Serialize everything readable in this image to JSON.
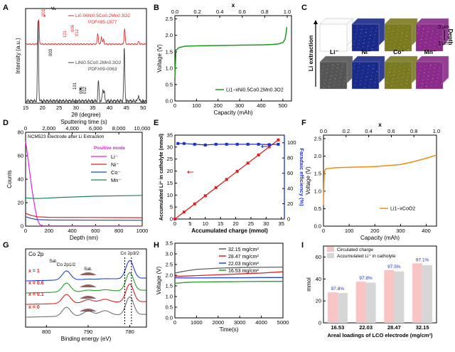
{
  "panel_labels": [
    "A",
    "B",
    "C",
    "D",
    "E",
    "F",
    "G",
    "H",
    "I"
  ],
  "chart_data": [
    {
      "id": "A",
      "type": "line",
      "xlabel": "2θ (degree)",
      "ylabel": "Intensity (a.u.)",
      "xticks": [
        "15",
        "20",
        "25",
        "30",
        "35",
        "40",
        "45",
        "50"
      ],
      "xlim": [
        15,
        51
      ],
      "series": [
        {
          "name": "Li0.06Ni0.5Co0.2Mn0.3O2",
          "ref": "PDF#85-1977",
          "color": "#e03030",
          "peaks": [
            [
              18.9,
              0.72
            ],
            [
              36.5,
              0.32
            ],
            [
              37.6,
              0.22
            ],
            [
              38.2,
              0.14
            ],
            [
              44.5,
              0.45
            ],
            [
              48.7,
              0.08
            ]
          ]
        },
        {
          "name": "LiNi0.5Co0.2Mn0.3O2",
          "ref": "PDF#09-0063",
          "color": "#404040",
          "peaks": [
            [
              18.7,
              0.95
            ],
            [
              36.7,
              0.24
            ],
            [
              38.0,
              0.13
            ],
            [
              38.4,
              0.11
            ],
            [
              44.4,
              0.62
            ],
            [
              48.6,
              0.07
            ]
          ]
        }
      ],
      "annotations": [
        "003",
        "101",
        "006",
        "012",
        "003",
        "101",
        "006",
        "012",
        "♦"
      ]
    },
    {
      "id": "B",
      "type": "line",
      "xlabel": "Capacity (mAh)",
      "ylabel": "Voltage (V)",
      "top_axis_label": "x",
      "xticks": [
        "0",
        "100",
        "200",
        "300",
        "400",
        "500"
      ],
      "xlim": [
        0,
        540
      ],
      "yticks": [
        "0.0",
        "0.5",
        "1.0",
        "1.5",
        "2.0",
        "2.5"
      ],
      "ylim": [
        0,
        2.6
      ],
      "top_ticks": [
        "0.0",
        "0.2",
        "0.4",
        "0.6",
        "0.8",
        "1.0"
      ],
      "series": [
        {
          "name": "Li1−xNi0.5Co0.2Mn0.3O2",
          "color": "#1a9a1a",
          "x": [
            0,
            5,
            20,
            50,
            100,
            200,
            300,
            400,
            450,
            480,
            500,
            510,
            515,
            518
          ],
          "y": [
            0.7,
            1.55,
            1.63,
            1.67,
            1.68,
            1.69,
            1.7,
            1.71,
            1.72,
            1.74,
            1.78,
            1.88,
            2.05,
            2.25
          ]
        }
      ]
    },
    {
      "id": "D",
      "type": "line",
      "title": "NCM523 Electrode after Li Extraction",
      "xlabel": "Depth (nm)",
      "ylabel": "Counts",
      "top_axis_label": "Sputtering time (s)",
      "xticks": [
        "0",
        "200",
        "400",
        "600",
        "800",
        "1000"
      ],
      "xlim": [
        0,
        1000
      ],
      "top_ticks": [
        "0",
        "2,000",
        "4,000",
        "6,000",
        "8,000",
        "10,000"
      ],
      "yticks": [
        "0",
        "20",
        "40",
        "60",
        "80"
      ],
      "ylim": [
        0,
        80
      ],
      "legend_title": "Positive mode",
      "series": [
        {
          "name": "Li⁻",
          "color": "#e020e0",
          "x": [
            0,
            20,
            40,
            60,
            80,
            100,
            120,
            150,
            1000
          ],
          "y": [
            72,
            58,
            42,
            28,
            16,
            6,
            1.5,
            0.3,
            0.2
          ]
        },
        {
          "name": "Ni⁻",
          "color": "#e02020",
          "x": [
            0,
            50,
            100,
            200,
            1000
          ],
          "y": [
            11,
            9,
            8,
            7.5,
            7.2
          ]
        },
        {
          "name": "Co⁻",
          "color": "#2040e0",
          "x": [
            0,
            50,
            100,
            200,
            1000
          ],
          "y": [
            8,
            6.5,
            5.6,
            5.2,
            5.0
          ]
        },
        {
          "name": "Mn⁻",
          "color": "#208060",
          "x": [
            0,
            100,
            300,
            600,
            1000
          ],
          "y": [
            24,
            23.5,
            24.5,
            25.5,
            26.2
          ]
        }
      ]
    },
    {
      "id": "E",
      "type": "line",
      "xlabel": "Accumulated charge (mmol)",
      "ylabel": "Accumulated Li⁺ in catholyte (mmol)",
      "y2label": "Faradaic efficiency (%)",
      "xticks": [
        "0",
        "5",
        "10",
        "15",
        "20",
        "25",
        "30",
        "35"
      ],
      "xlim": [
        0,
        36
      ],
      "yticks": [
        "0",
        "5",
        "10",
        "15",
        "20",
        "25",
        "30",
        "35"
      ],
      "ylim": [
        0,
        35
      ],
      "y2ticks": [
        "0",
        "20",
        "40",
        "60",
        "80",
        "100"
      ],
      "y2lim": [
        0,
        110
      ],
      "series": [
        {
          "name": "Accumulated Li⁺",
          "color": "#e02020",
          "x": [
            0,
            3,
            6.5,
            10,
            13.5,
            17,
            20.5,
            24,
            27.5,
            31,
            34
          ],
          "y": [
            0,
            2.9,
            6.3,
            9.7,
            13.1,
            16.5,
            19.9,
            23.3,
            26.7,
            30.1,
            33.0
          ]
        },
        {
          "name": "Faradaic efficiency",
          "color": "#1a2fd0",
          "x": [
            1,
            3,
            6.5,
            10,
            13.5,
            17,
            20.5,
            24,
            27.5,
            31,
            34
          ],
          "y": [
            99,
            99,
            98,
            97,
            98,
            98,
            98,
            98,
            98,
            97.5,
            98
          ]
        }
      ]
    },
    {
      "id": "F",
      "type": "line",
      "xlabel": "Capacity (mAh)",
      "ylabel": "Voltage (V)",
      "top_axis_label": "x",
      "xticks": [
        "0",
        "100",
        "200",
        "300",
        "400"
      ],
      "xlim": [
        0,
        440
      ],
      "yticks": [
        "0.0",
        "0.5",
        "1.0",
        "1.5",
        "2.0",
        "2.5"
      ],
      "ylim": [
        0,
        2.6
      ],
      "top_ticks": [
        "0.0",
        "0.2",
        "0.4",
        "0.6",
        "0.8",
        "1.0"
      ],
      "series": [
        {
          "name": "Li1−xCoO2",
          "color": "#f08a10",
          "x": [
            0,
            3,
            10,
            50,
            100,
            200,
            300,
            350,
            400,
            440
          ],
          "y": [
            0.6,
            1.55,
            1.64,
            1.67,
            1.68,
            1.7,
            1.76,
            1.84,
            1.94,
            2.03
          ]
        }
      ]
    },
    {
      "id": "G",
      "type": "line",
      "title": "Co 2p",
      "xlabel": "Binding energy (eV)",
      "xticks": [
        "800",
        "790",
        "780"
      ],
      "xlim": [
        805,
        776
      ],
      "series_labels": [
        "x = 1",
        "x = 0.6",
        "x = 0.1",
        "x = 0"
      ],
      "peak_labels": [
        "Co 2p1/2",
        "Sat.",
        "Co 2p3/2",
        "Sat."
      ]
    },
    {
      "id": "H",
      "type": "line",
      "xlabel": "Time(s)",
      "ylabel": "Voltage (V)",
      "xticks": [
        "0",
        "1000",
        "2000",
        "3000",
        "4000",
        "5000"
      ],
      "xlim": [
        0,
        5000
      ],
      "yticks": [
        "0.0",
        "0.5",
        "1.0",
        "1.5",
        "2.0",
        "2.5",
        "3.0",
        "3.5"
      ],
      "ylim": [
        0,
        3.5
      ],
      "series": [
        {
          "name": "32.15 mg/cm²",
          "color": "#606060",
          "x": [
            0,
            500,
            1000,
            2000,
            3000,
            4000,
            5000
          ],
          "y": [
            2.1,
            2.2,
            2.27,
            2.33,
            2.36,
            2.37,
            2.38
          ]
        },
        {
          "name": "28.47 mg/cm²",
          "color": "#e02020",
          "x": [
            0,
            500,
            1000,
            2000,
            3000,
            4000,
            5000
          ],
          "y": [
            1.95,
            1.96,
            1.98,
            2.02,
            2.06,
            2.1,
            2.16
          ]
        },
        {
          "name": "22.03 mg/cm²",
          "color": "#2040e0",
          "x": [
            0,
            500,
            1000,
            2000,
            3000,
            4000,
            5000
          ],
          "y": [
            1.88,
            1.87,
            1.87,
            1.88,
            1.88,
            1.89,
            1.89
          ]
        },
        {
          "name": "16.53 mg/cm²",
          "color": "#2a9a2a",
          "x": [
            0,
            500,
            1000,
            2000,
            3000,
            4000,
            5000
          ],
          "y": [
            1.62,
            1.66,
            1.68,
            1.69,
            1.7,
            1.71,
            1.71
          ]
        }
      ]
    },
    {
      "id": "I",
      "type": "bar",
      "xlabel": "Areal loadings of LCO electrode (mg/cm²)",
      "ylabel": "mmol",
      "categories": [
        "16.53",
        "22.03",
        "28.47",
        "32.15"
      ],
      "yticks": [
        "0",
        "20",
        "40",
        "60"
      ],
      "ylim": [
        0,
        70
      ],
      "series": [
        {
          "name": "Circulated charge",
          "color": "#f8c4c4",
          "values": [
            27.8,
            37.5,
            48.1,
            54.2
          ]
        },
        {
          "name": "Accumulated Li⁺ in catholyte",
          "color": "#d6d6d6",
          "values": [
            27.2,
            36.7,
            46.9,
            52.6
          ]
        }
      ],
      "data_labels": [
        "97.8%",
        "97.8%",
        "97.5%",
        "97.1%"
      ]
    }
  ],
  "panel_c": {
    "rows_label": "Li extraction",
    "depth_label": "Depth",
    "depth_ticks": [
      "0 μm",
      "1 μm"
    ],
    "elements": [
      {
        "name": "Li⁻",
        "color": "#e6e6e6"
      },
      {
        "name": "Ni⁻",
        "color": "#1a2a8a"
      },
      {
        "name": "Co⁻",
        "color": "#7a7a20"
      },
      {
        "name": "Mn⁻",
        "color": "#8a2a8a"
      }
    ],
    "after_li_color": "#555555"
  }
}
